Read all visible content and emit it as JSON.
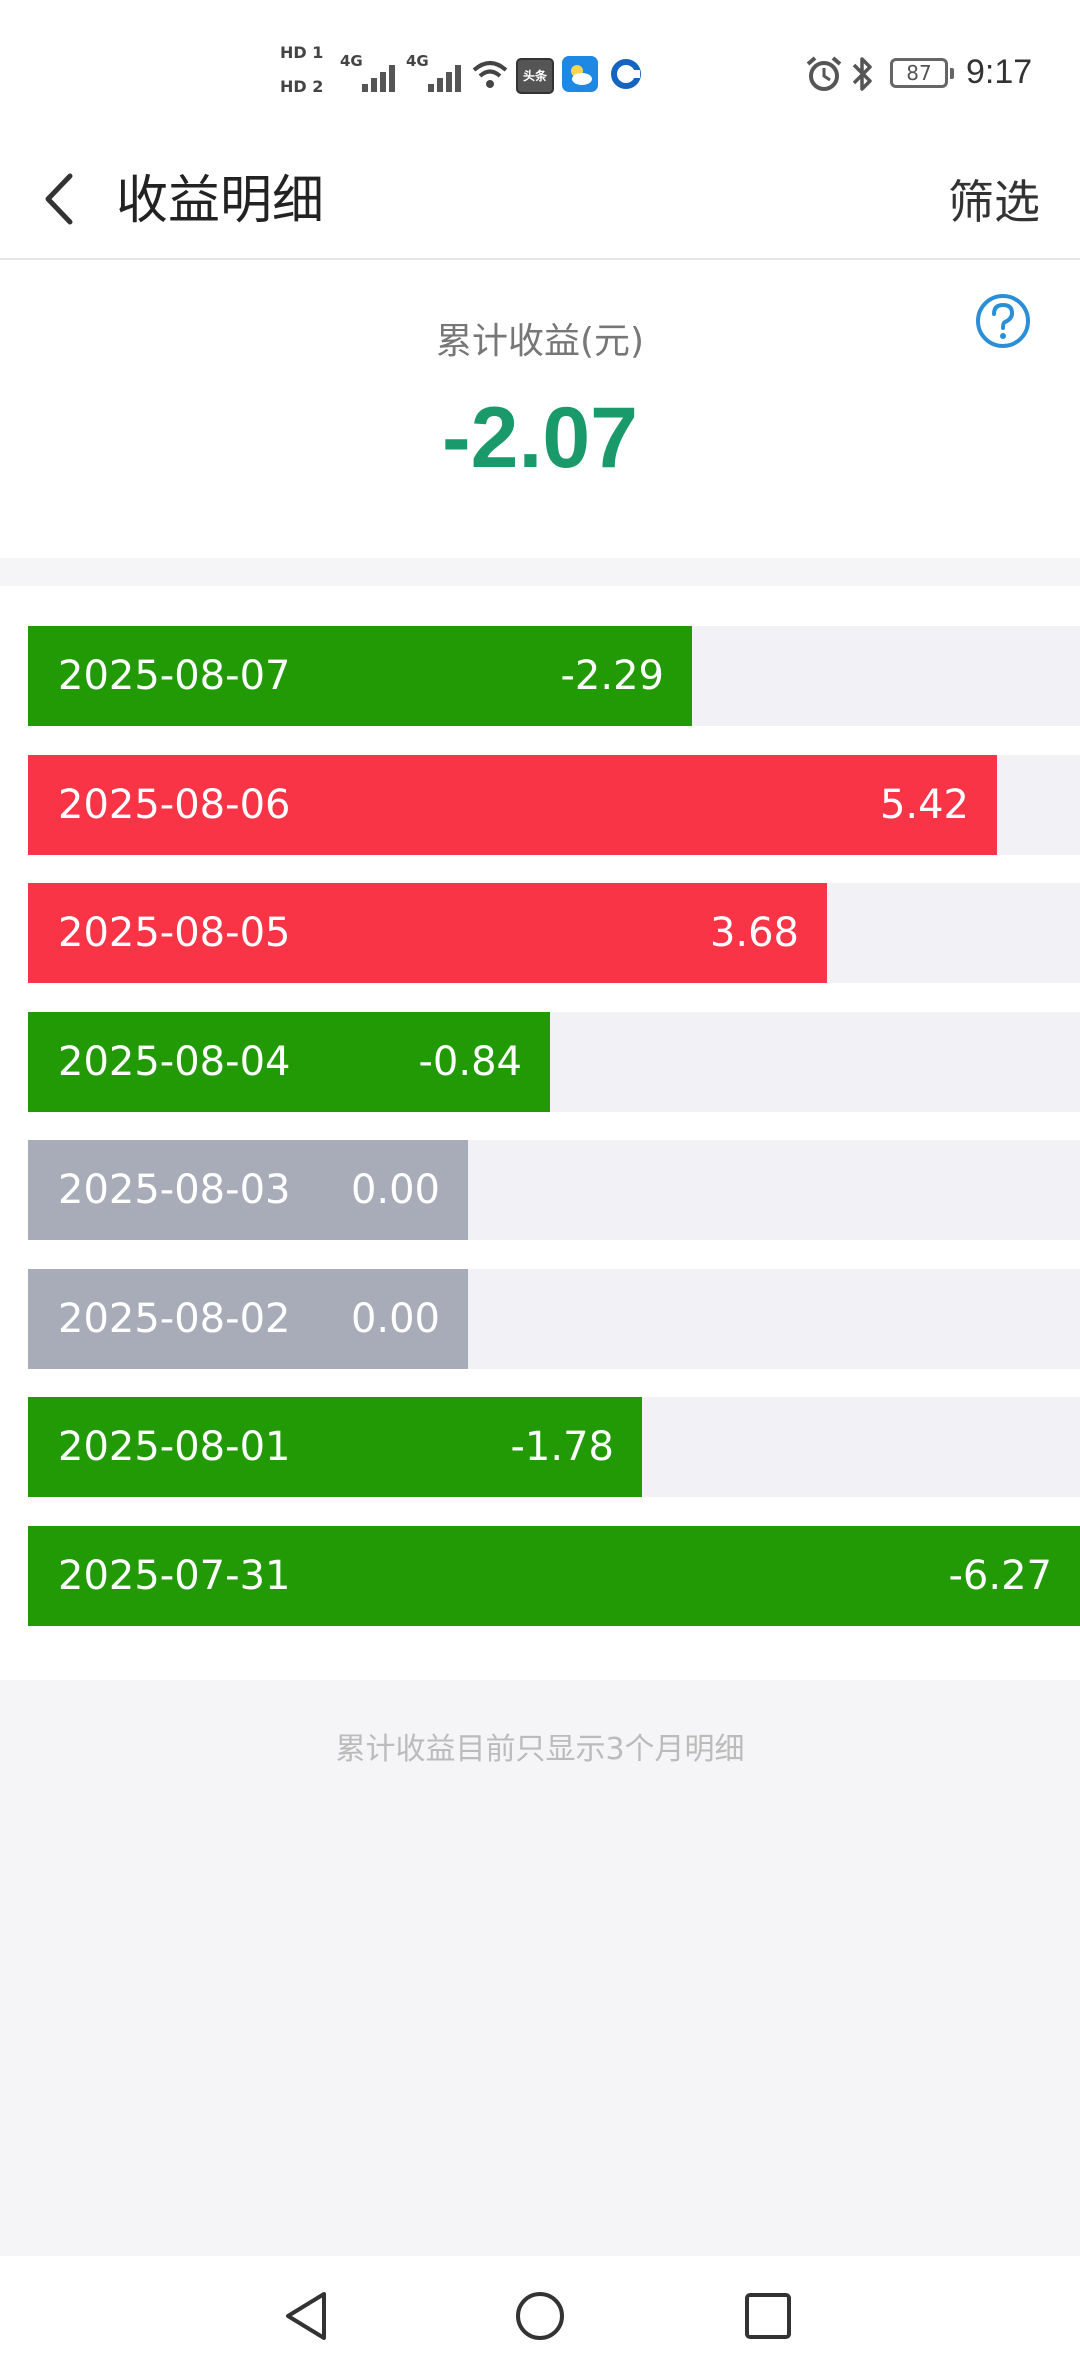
{
  "status_bar": {
    "hd1": "HD 1",
    "hd2": "HD 2",
    "net1": "4G",
    "net2": "4G",
    "toutiao_badge": "头条",
    "battery": "87",
    "time": "9:17"
  },
  "header": {
    "title": "收益明细",
    "filter_label": "筛选"
  },
  "summary": {
    "label": "累计收益(元)",
    "value": "-2.07",
    "value_color": "#1a9a6a"
  },
  "colors": {
    "gain": "#f83446",
    "loss": "#219a06",
    "zero": "#a8acb8",
    "track": "#f2f2f6"
  },
  "rows": [
    {
      "date": "2025-08-07",
      "amount": "-2.29",
      "value": -2.29,
      "type": "loss"
    },
    {
      "date": "2025-08-06",
      "amount": "5.42",
      "value": 5.42,
      "type": "gain"
    },
    {
      "date": "2025-08-05",
      "amount": "3.68",
      "value": 3.68,
      "type": "gain"
    },
    {
      "date": "2025-08-04",
      "amount": "-0.84",
      "value": -0.84,
      "type": "loss"
    },
    {
      "date": "2025-08-03",
      "amount": "0.00",
      "value": 0,
      "type": "zero"
    },
    {
      "date": "2025-08-02",
      "amount": "0.00",
      "value": 0,
      "type": "zero"
    },
    {
      "date": "2025-08-01",
      "amount": "-1.78",
      "value": -1.78,
      "type": "loss"
    },
    {
      "date": "2025-07-31",
      "amount": "-6.27",
      "value": -6.27,
      "type": "loss"
    }
  ],
  "footnote": "累计收益目前只显示3个月明细",
  "icons": {
    "back": "chevron-left-icon",
    "help": "question-circle-icon",
    "nav_back": "triangle-back-icon",
    "nav_home": "circle-home-icon",
    "nav_recent": "square-recent-icon"
  }
}
